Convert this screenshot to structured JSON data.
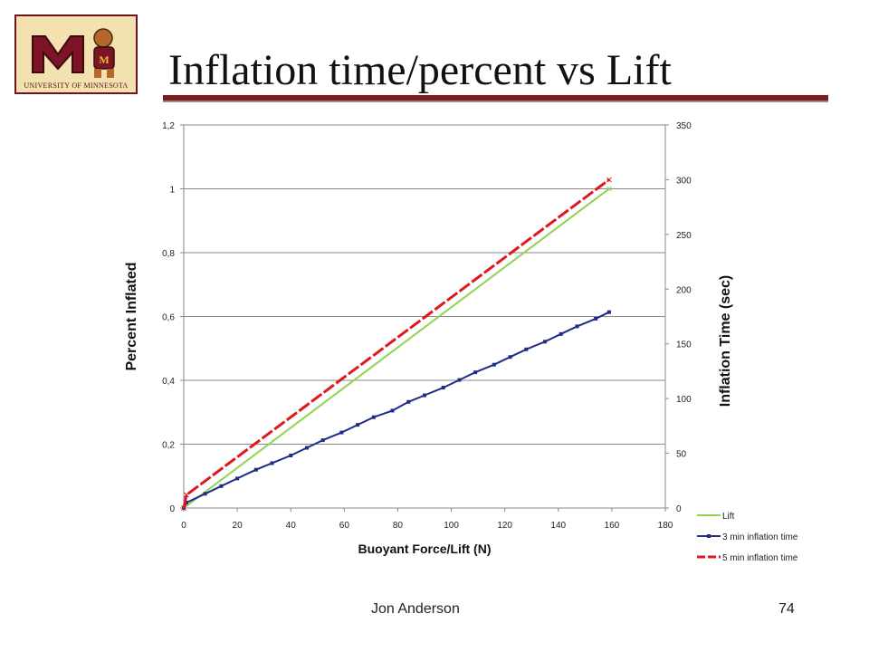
{
  "slide": {
    "title": "Inflation time/percent vs Lift",
    "footer_author": "Jon Anderson",
    "page_number": "74",
    "logo_text": "UNIVERSITY OF MINNESOTA"
  },
  "colors": {
    "title_rule": "#7a1d1d",
    "logo_maroon": "#6d1220",
    "logo_gold": "#f3e2b0"
  },
  "chart_data": {
    "type": "line",
    "xlabel": "Buoyant Force/Lift (N)",
    "ylabel": "Percent Inflated",
    "y2label": "Inflation Time (sec)",
    "xlim": [
      0,
      180
    ],
    "ylim": [
      0,
      1.2
    ],
    "y2lim": [
      0,
      350
    ],
    "x_ticks": [
      "0",
      "20",
      "40",
      "60",
      "80",
      "100",
      "120",
      "140",
      "160",
      "180"
    ],
    "y_ticks": [
      "0",
      "0,2",
      "0,4",
      "0,6",
      "0,8",
      "1",
      "1,2"
    ],
    "y2_ticks": [
      "0",
      "50",
      "100",
      "150",
      "200",
      "250",
      "300",
      "350"
    ],
    "grid": "horizontal",
    "legend_position": "bottom-right",
    "series": [
      {
        "name": "Lift",
        "axis": "left",
        "color": "#92d050",
        "marker": "x",
        "x": [
          0,
          159
        ],
        "y": [
          0,
          1.0
        ]
      },
      {
        "name": "3 min inflation time",
        "axis": "right",
        "color": "#1f2d86",
        "marker": "square",
        "x": [
          0,
          1,
          8,
          14,
          20,
          27,
          33,
          40,
          46,
          52,
          59,
          65,
          71,
          78,
          84,
          90,
          97,
          103,
          109,
          116,
          122,
          128,
          135,
          141,
          147,
          154,
          159
        ],
        "y": [
          0,
          5,
          13,
          20,
          27,
          35,
          41,
          48,
          55,
          62,
          69,
          76,
          83,
          89,
          97,
          103,
          110,
          117,
          124,
          131,
          138,
          145,
          152,
          159,
          166,
          173,
          179
        ]
      },
      {
        "name": "5 min inflation time",
        "axis": "right",
        "color": "#e0181c",
        "marker": "x",
        "dash": "long-dash",
        "x": [
          0,
          1,
          159
        ],
        "y": [
          0,
          12,
          300
        ]
      }
    ]
  }
}
